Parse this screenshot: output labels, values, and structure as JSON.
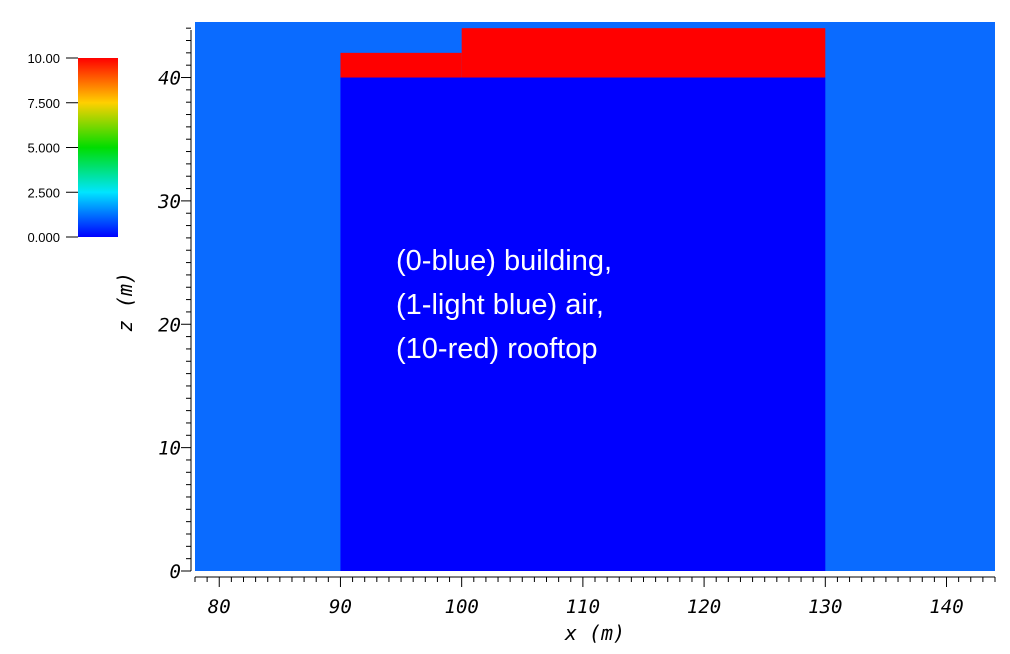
{
  "chart_data": {
    "type": "heatmap",
    "title": "",
    "xlabel": "x (m)",
    "ylabel": "z (m)",
    "xlim": [
      78,
      144
    ],
    "ylim": [
      0,
      44.5
    ],
    "x_ticks": [
      "80",
      "90",
      "100",
      "110",
      "120",
      "130",
      "140"
    ],
    "y_ticks": [
      "0",
      "10",
      "20",
      "30",
      "40"
    ],
    "regions": [
      {
        "name": "air",
        "value": 1,
        "x": [
          78,
          144
        ],
        "z": [
          0,
          44.5
        ],
        "color": "#0A6BFF"
      },
      {
        "name": "building",
        "value": 0,
        "x": [
          90,
          130
        ],
        "z": [
          0,
          40
        ],
        "color": "#0000FF"
      },
      {
        "name": "rooftop",
        "value": 10,
        "x": [
          90,
          100
        ],
        "z": [
          40,
          42
        ],
        "color": "#FF0000"
      },
      {
        "name": "rooftop",
        "value": 10,
        "x": [
          100,
          130
        ],
        "z": [
          40,
          44
        ],
        "color": "#FF0000"
      }
    ],
    "colorbar": {
      "range": [
        0,
        10
      ],
      "tick_labels": [
        "10.00",
        "7.500",
        "5.000",
        "2.500",
        "0.000"
      ],
      "tick_values": [
        10,
        7.5,
        5,
        2.5,
        0
      ],
      "colors": [
        "#FF0000",
        "#FFD000",
        "#00DD00",
        "#00E5FF",
        "#0000FF"
      ]
    },
    "annotation": {
      "lines": [
        "(0-blue) building,",
        "(1-light blue) air,",
        "(10-red) rooftop"
      ],
      "color": "#FFFFFF"
    }
  }
}
